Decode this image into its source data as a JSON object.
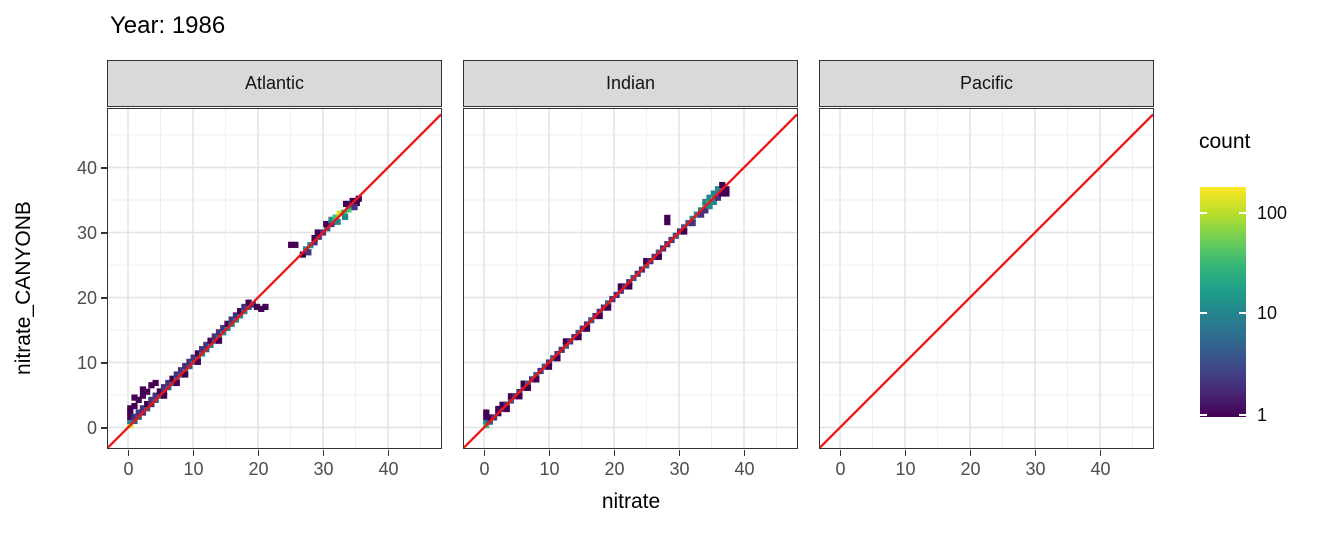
{
  "title": "Year: 1986",
  "axes": {
    "x_label": "nitrate",
    "y_label": "nitrate_CANYONB",
    "x_ticks": [
      0,
      10,
      20,
      30,
      40
    ],
    "y_ticks": [
      0,
      10,
      20,
      30,
      40
    ],
    "minor_ticks": [
      5,
      15,
      25,
      35,
      45
    ]
  },
  "facets": [
    "Atlantic",
    "Indian",
    "Pacific"
  ],
  "legend": {
    "title": "count",
    "tick_labels": [
      "100",
      "10",
      "1"
    ],
    "scale": "log10",
    "gradient_stops_bottom_to_top": [
      "#440154 0%",
      "#482878 11%",
      "#3e4a89 22%",
      "#31688e 33%",
      "#26828e 44%",
      "#1f9e89 55%",
      "#35b779 66%",
      "#6ece58 77%",
      "#b5de2b 88%",
      "#fde725 100%"
    ]
  },
  "colors": {
    "identity_line": "#f01414",
    "panel_border": "#333333",
    "strip_background": "#d9d9d9",
    "grid_major": "#e2e2e2",
    "grid_minor": "#efefef",
    "tick_text": "#4d4d4d"
  },
  "chart_data": {
    "type": "heatmap",
    "subtype": "geom_bin2d faceted scatter of predicted vs observed nitrate",
    "title": "Year: 1986",
    "xlabel": "nitrate",
    "ylabel": "nitrate_CANYONB",
    "xlim": [
      -3.1,
      48.2
    ],
    "ylim": [
      -3.2,
      49.0
    ],
    "grid": true,
    "legend_position": "right",
    "identity_line": {
      "equation": "y = x",
      "color": "#f01414"
    },
    "count_levels": [
      1,
      3,
      6,
      15,
      40,
      130
    ],
    "level_colors": [
      "#440154",
      "#46327e",
      "#365c8d",
      "#24868e",
      "#44bf70",
      "#d8e219"
    ],
    "panels": [
      {
        "facet": "Atlantic",
        "tiles": [
          [
            0.35,
            0.35,
            5
          ],
          [
            0.35,
            1.0,
            3
          ],
          [
            0.35,
            1.65,
            0
          ],
          [
            0.35,
            2.3,
            0
          ],
          [
            0.35,
            2.95,
            0
          ],
          [
            1.0,
            1.0,
            2
          ],
          [
            1.0,
            1.65,
            1
          ],
          [
            1.0,
            3.3,
            0
          ],
          [
            1.0,
            4.6,
            0
          ],
          [
            1.65,
            1.65,
            2
          ],
          [
            1.65,
            2.3,
            1
          ],
          [
            1.65,
            4.25,
            0
          ],
          [
            2.3,
            2.3,
            1
          ],
          [
            2.3,
            2.95,
            1
          ],
          [
            2.3,
            4.9,
            0
          ],
          [
            2.3,
            5.85,
            0
          ],
          [
            2.95,
            2.95,
            2
          ],
          [
            2.95,
            3.6,
            0
          ],
          [
            2.95,
            5.5,
            0
          ],
          [
            3.6,
            3.6,
            1
          ],
          [
            3.6,
            4.25,
            1
          ],
          [
            3.6,
            6.5,
            0
          ],
          [
            4.25,
            4.25,
            2
          ],
          [
            4.25,
            4.9,
            1
          ],
          [
            4.25,
            6.85,
            0
          ],
          [
            4.9,
            4.9,
            2
          ],
          [
            4.9,
            5.55,
            0
          ],
          [
            5.55,
            5.55,
            1
          ],
          [
            5.55,
            6.2,
            1
          ],
          [
            5.55,
            4.9,
            0
          ],
          [
            6.2,
            6.2,
            2
          ],
          [
            6.2,
            6.85,
            1
          ],
          [
            6.85,
            6.85,
            2
          ],
          [
            6.85,
            7.5,
            0
          ],
          [
            7.5,
            7.5,
            3
          ],
          [
            7.5,
            8.15,
            1
          ],
          [
            7.5,
            6.85,
            0
          ],
          [
            8.15,
            8.15,
            2
          ],
          [
            8.15,
            8.8,
            1
          ],
          [
            8.8,
            8.8,
            3
          ],
          [
            8.8,
            9.45,
            1
          ],
          [
            8.8,
            8.15,
            0
          ],
          [
            9.45,
            9.45,
            2
          ],
          [
            9.45,
            10.1,
            1
          ],
          [
            10.1,
            10.1,
            3
          ],
          [
            10.1,
            10.75,
            1
          ],
          [
            10.75,
            10.75,
            2
          ],
          [
            10.75,
            11.4,
            0
          ],
          [
            10.75,
            10.1,
            0
          ],
          [
            11.4,
            11.4,
            3
          ],
          [
            11.4,
            12.05,
            1
          ],
          [
            12.05,
            12.05,
            2
          ],
          [
            12.05,
            12.7,
            1
          ],
          [
            12.7,
            12.7,
            3
          ],
          [
            12.7,
            13.35,
            0
          ],
          [
            13.35,
            13.35,
            2
          ],
          [
            13.35,
            14.0,
            1
          ],
          [
            14.0,
            14.0,
            3
          ],
          [
            14.0,
            14.65,
            1
          ],
          [
            14.0,
            13.35,
            0
          ],
          [
            14.65,
            14.65,
            3
          ],
          [
            14.65,
            15.3,
            1
          ],
          [
            15.3,
            15.3,
            3
          ],
          [
            15.3,
            15.95,
            0
          ],
          [
            15.95,
            15.95,
            3
          ],
          [
            15.95,
            16.6,
            1
          ],
          [
            16.6,
            16.6,
            3
          ],
          [
            16.6,
            17.25,
            1
          ],
          [
            17.25,
            17.25,
            3
          ],
          [
            17.25,
            17.9,
            0
          ],
          [
            17.9,
            17.9,
            3
          ],
          [
            17.9,
            18.55,
            1
          ],
          [
            18.55,
            18.55,
            2
          ],
          [
            18.55,
            19.2,
            0
          ],
          [
            19.2,
            18.9,
            1
          ],
          [
            19.85,
            18.55,
            0
          ],
          [
            20.5,
            18.25,
            0
          ],
          [
            21.15,
            18.55,
            0
          ],
          [
            25.1,
            28.1,
            0
          ],
          [
            25.75,
            28.1,
            0
          ],
          [
            26.9,
            26.6,
            0
          ],
          [
            27.4,
            27.4,
            3
          ],
          [
            28.05,
            28.05,
            3
          ],
          [
            27.75,
            26.95,
            1
          ],
          [
            28.7,
            28.5,
            1
          ],
          [
            28.7,
            29.15,
            0
          ],
          [
            29.35,
            29.35,
            1
          ],
          [
            29.2,
            30.0,
            0
          ],
          [
            30.0,
            30.0,
            1
          ],
          [
            30.65,
            30.65,
            2
          ],
          [
            30.5,
            31.3,
            0
          ],
          [
            31.3,
            31.3,
            1
          ],
          [
            31.3,
            31.95,
            3
          ],
          [
            31.95,
            32.3,
            4
          ],
          [
            32.25,
            31.65,
            3
          ],
          [
            32.6,
            32.9,
            5
          ],
          [
            33.25,
            33.05,
            4
          ],
          [
            33.4,
            32.4,
            3
          ],
          [
            33.9,
            33.55,
            4
          ],
          [
            34.2,
            34.2,
            3
          ],
          [
            33.55,
            34.4,
            0
          ],
          [
            34.55,
            34.85,
            0
          ],
          [
            35.2,
            34.55,
            0
          ],
          [
            34.85,
            33.9,
            1
          ],
          [
            35.5,
            35.2,
            0
          ]
        ]
      },
      {
        "facet": "Indian",
        "tiles": [
          [
            0.35,
            0.35,
            4
          ],
          [
            0.35,
            1.0,
            3
          ],
          [
            0.35,
            1.65,
            0
          ],
          [
            0.35,
            2.3,
            0
          ],
          [
            0.9,
            0.9,
            2
          ],
          [
            0.9,
            1.55,
            0
          ],
          [
            1.55,
            1.55,
            1
          ],
          [
            2.2,
            2.2,
            0
          ],
          [
            2.2,
            2.85,
            0
          ],
          [
            2.85,
            2.85,
            1
          ],
          [
            2.85,
            3.5,
            0
          ],
          [
            3.5,
            3.5,
            1
          ],
          [
            3.5,
            2.85,
            0
          ],
          [
            4.15,
            4.15,
            2
          ],
          [
            4.15,
            4.8,
            0
          ],
          [
            4.8,
            4.8,
            1
          ],
          [
            5.45,
            5.45,
            1
          ],
          [
            5.45,
            4.8,
            0
          ],
          [
            6.1,
            6.1,
            1
          ],
          [
            6.1,
            6.75,
            0
          ],
          [
            6.75,
            6.75,
            2
          ],
          [
            6.75,
            6.1,
            0
          ],
          [
            7.4,
            7.4,
            1
          ],
          [
            8.05,
            8.05,
            2
          ],
          [
            8.05,
            7.4,
            0
          ],
          [
            8.7,
            8.7,
            1
          ],
          [
            9.35,
            9.35,
            2
          ],
          [
            10.0,
            10.0,
            1
          ],
          [
            10.0,
            9.35,
            0
          ],
          [
            10.65,
            10.65,
            2
          ],
          [
            11.3,
            11.3,
            1
          ],
          [
            11.3,
            10.65,
            0
          ],
          [
            11.95,
            11.95,
            1
          ],
          [
            12.6,
            12.6,
            2
          ],
          [
            12.6,
            13.25,
            0
          ],
          [
            13.25,
            13.25,
            1
          ],
          [
            13.9,
            13.9,
            1
          ],
          [
            14.55,
            14.55,
            2
          ],
          [
            14.55,
            13.9,
            0
          ],
          [
            15.2,
            15.2,
            1
          ],
          [
            15.85,
            15.85,
            1
          ],
          [
            15.85,
            15.2,
            0
          ],
          [
            16.5,
            16.5,
            2
          ],
          [
            17.15,
            17.15,
            1
          ],
          [
            17.8,
            17.8,
            1
          ],
          [
            17.8,
            17.15,
            0
          ],
          [
            18.45,
            18.45,
            1
          ],
          [
            19.1,
            19.1,
            2
          ],
          [
            19.1,
            18.45,
            0
          ],
          [
            19.75,
            19.75,
            1
          ],
          [
            20.4,
            20.4,
            1
          ],
          [
            21.05,
            21.05,
            1
          ],
          [
            21.05,
            21.7,
            0
          ],
          [
            21.7,
            21.7,
            1
          ],
          [
            22.35,
            22.35,
            1
          ],
          [
            22.35,
            21.7,
            0
          ],
          [
            23.0,
            23.0,
            2
          ],
          [
            23.65,
            23.65,
            1
          ],
          [
            24.3,
            24.3,
            1
          ],
          [
            24.95,
            24.95,
            2
          ],
          [
            24.95,
            25.6,
            0
          ],
          [
            25.6,
            25.6,
            1
          ],
          [
            26.25,
            26.25,
            1
          ],
          [
            26.9,
            26.9,
            2
          ],
          [
            26.9,
            26.25,
            0
          ],
          [
            27.55,
            27.55,
            1
          ],
          [
            28.2,
            28.2,
            1
          ],
          [
            28.2,
            31.6,
            0
          ],
          [
            28.2,
            32.25,
            0
          ],
          [
            28.85,
            28.85,
            1
          ],
          [
            29.5,
            29.5,
            2
          ],
          [
            30.15,
            30.15,
            1
          ],
          [
            30.8,
            30.8,
            2
          ],
          [
            30.8,
            30.15,
            0
          ],
          [
            31.45,
            31.45,
            2
          ],
          [
            32.1,
            32.1,
            3
          ],
          [
            32.1,
            31.45,
            1
          ],
          [
            32.75,
            32.75,
            3
          ],
          [
            33.4,
            33.4,
            3
          ],
          [
            33.4,
            32.75,
            1
          ],
          [
            34.05,
            34.05,
            4
          ],
          [
            34.05,
            34.7,
            3
          ],
          [
            34.05,
            33.4,
            1
          ],
          [
            34.7,
            34.7,
            4
          ],
          [
            34.7,
            35.35,
            3
          ],
          [
            34.7,
            34.05,
            3
          ],
          [
            35.35,
            35.35,
            4
          ],
          [
            35.35,
            36.0,
            3
          ],
          [
            35.35,
            34.7,
            3
          ],
          [
            36.0,
            36.0,
            3
          ],
          [
            36.0,
            36.65,
            3
          ],
          [
            36.0,
            35.35,
            1
          ],
          [
            36.65,
            36.65,
            3
          ],
          [
            36.65,
            36.0,
            0
          ],
          [
            37.3,
            36.65,
            0
          ],
          [
            37.3,
            36.0,
            0
          ],
          [
            36.65,
            37.3,
            0
          ]
        ]
      },
      {
        "facet": "Pacific",
        "tiles": []
      }
    ]
  }
}
